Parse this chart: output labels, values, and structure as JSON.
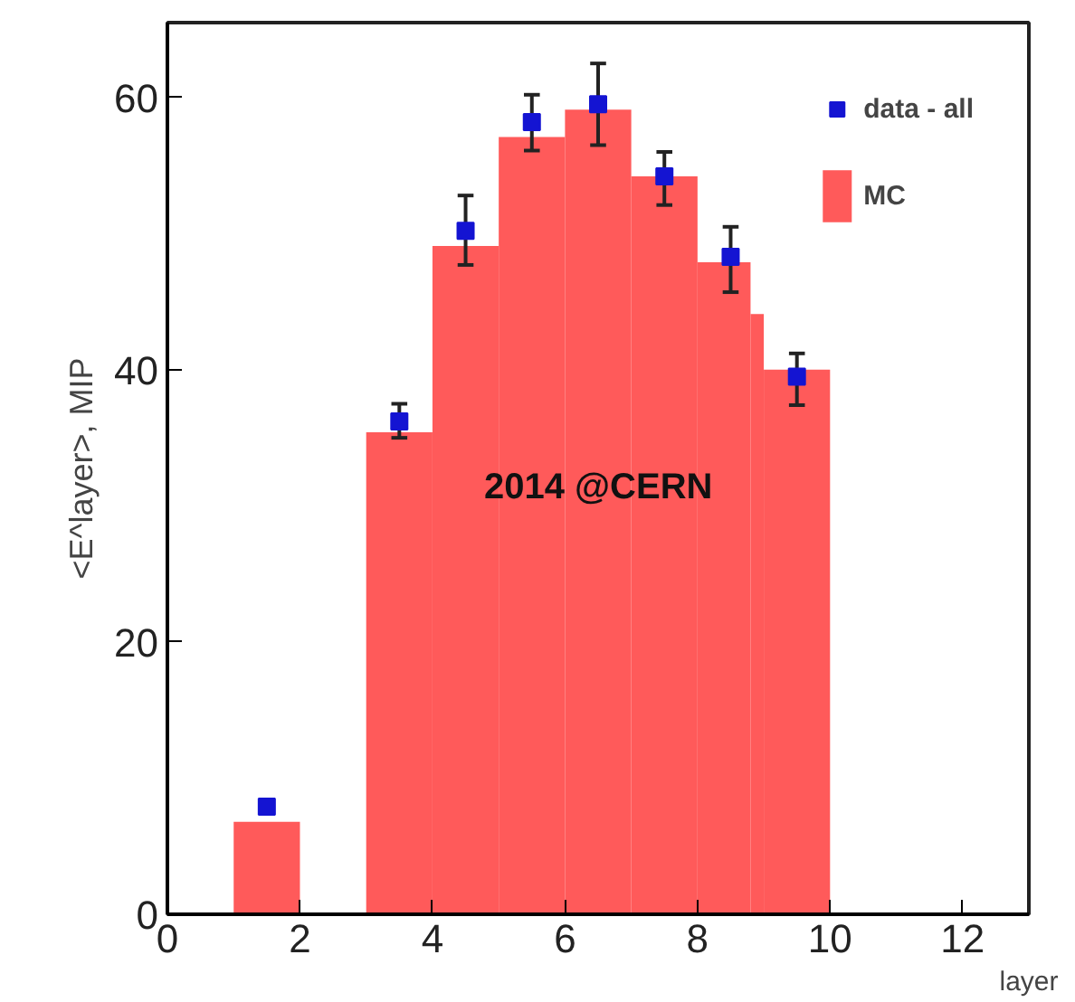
{
  "chart_data": {
    "type": "histogram",
    "xlabel": "layer",
    "ylabel": "<E^layer>, MIP",
    "xlim": [
      0,
      13
    ],
    "ylim": [
      0,
      65.5
    ],
    "xticks": [
      0,
      2,
      4,
      6,
      8,
      10,
      12
    ],
    "yticks": [
      0,
      20,
      40,
      60
    ],
    "grid": false,
    "legend": "top right",
    "annotations": [
      "2014 @CERN"
    ],
    "series": [
      {
        "name": "MC",
        "type": "histogram",
        "color": "#ff5a5a",
        "bins": [
          1,
          2,
          3,
          4,
          5,
          6,
          7,
          8,
          8.8,
          9,
          10
        ],
        "values": [
          6.8,
          0,
          35.4,
          49.1,
          57.1,
          59.1,
          54.2,
          47.9,
          44.1,
          40.0
        ]
      },
      {
        "name": "data - all",
        "type": "scatter",
        "color": "#1414d2",
        "marker": "square",
        "x": [
          1.5,
          3.5,
          4.5,
          5.5,
          6.5,
          7.5,
          8.5,
          9.5
        ],
        "values": [
          7.9,
          36.2,
          50.2,
          58.2,
          59.5,
          54.2,
          48.3,
          39.5
        ],
        "errors": [
          null,
          [
            35.0,
            37.5
          ],
          [
            47.7,
            52.8
          ],
          [
            56.1,
            60.2
          ],
          [
            56.5,
            62.5
          ],
          [
            52.1,
            56.0
          ],
          [
            45.7,
            50.5
          ],
          [
            37.4,
            41.2
          ]
        ]
      }
    ]
  }
}
